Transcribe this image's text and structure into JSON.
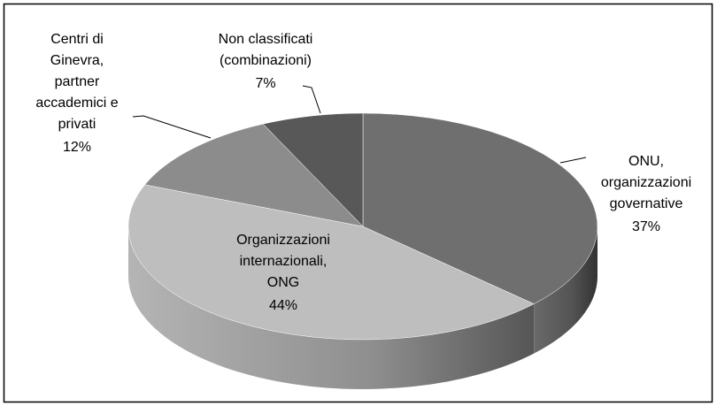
{
  "chart_data": {
    "type": "pie3d",
    "categories": [
      "ONU,\norganizzazioni\ngovernative",
      "Organizzazioni\ninternazionali,\nONG",
      "Centri di\nGinevra,\npartner\naccademici e\nprivati",
      "Non classificati\n(combinazioni)"
    ],
    "values": [
      37,
      44,
      12,
      7
    ],
    "value_labels": [
      "37%",
      "44%",
      "12%",
      "7%"
    ],
    "colors": [
      "#6f6f6f",
      "#bebebe",
      "#8c8c8c",
      "#585858"
    ]
  }
}
